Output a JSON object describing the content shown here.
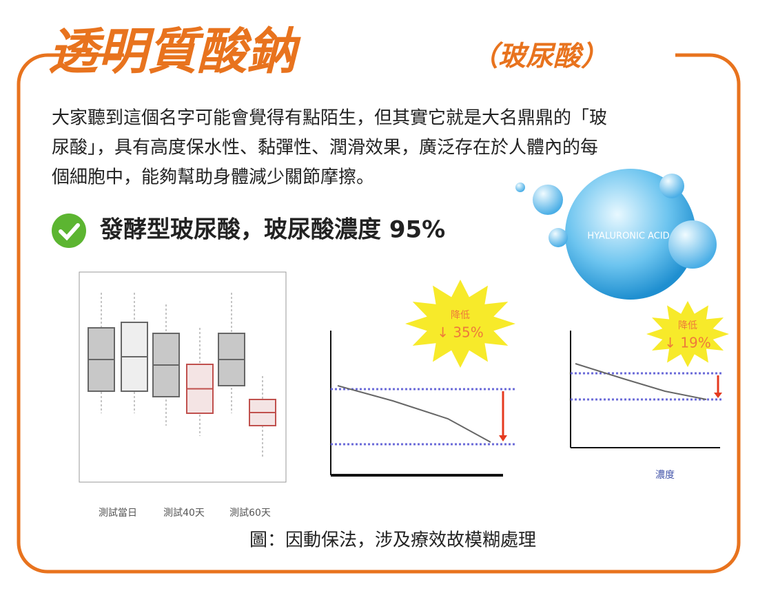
{
  "header": {
    "title": "透明質酸鈉",
    "subtitle": "（玻尿酸）"
  },
  "body": {
    "paragraph": [
      "大家聽到這個名字可能會覺得有點陌生，但其實它就是大名鼎鼎的「玻",
      "尿酸」，具有高度保水性、黏彈性、潤滑效果，廣泛存在於人體內的每",
      "個細胞中，能夠幫助身體減少關節摩擦。"
    ],
    "highlight": "發酵型玻尿酸，玻尿酸濃度 95%"
  },
  "badge": {
    "label": "HYALURONIC ACID"
  },
  "figures": {
    "boxplot": {
      "groups": [
        "測試當日",
        "測試40天",
        "測試60天"
      ]
    },
    "chart1": {
      "burst": [
        "降低",
        "↓ 35%"
      ]
    },
    "chart2": {
      "burst": [
        "降低",
        "↓ 19%"
      ],
      "xlabel": "濃度"
    }
  },
  "caption": "圖：因動保法，涉及療效故模糊處理"
}
